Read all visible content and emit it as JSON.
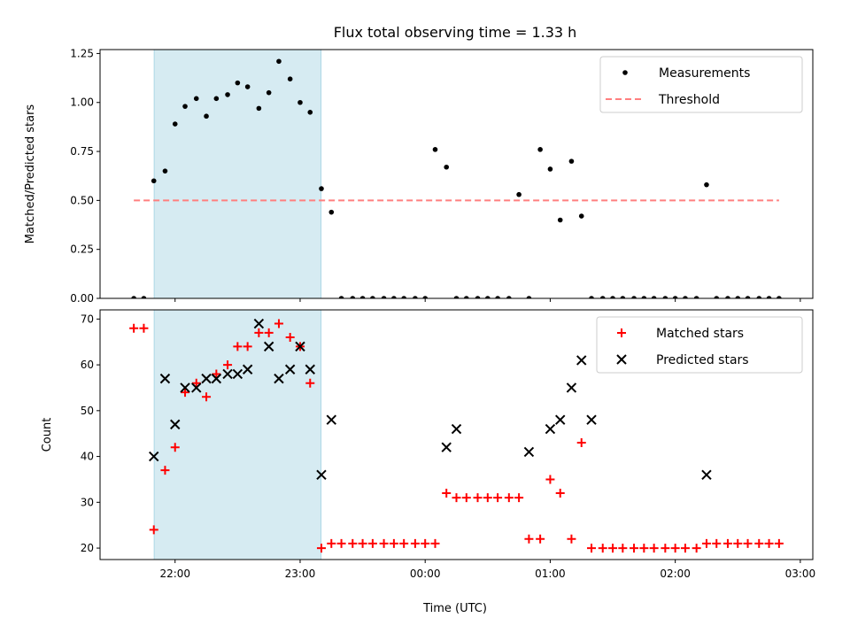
{
  "chart_data": {
    "title": "Flux total observing time = 1.33 h",
    "xlabel": "Time (UTC)",
    "x_ticks": [
      "22:00",
      "23:00",
      "00:00",
      "01:00",
      "02:00",
      "03:00"
    ],
    "x_tick_hours": [
      22,
      23,
      24,
      25,
      26,
      27
    ],
    "xlim_hours": [
      21.4,
      27.1
    ],
    "shaded_span_hours": [
      21.833,
      23.167
    ],
    "shade_color": "#add8e6",
    "panels": [
      {
        "type": "scatter",
        "ylabel": "Matched/Predicted stars",
        "ylim": [
          0,
          1.27
        ],
        "y_ticks": [
          "0.00",
          "0.25",
          "0.50",
          "0.75",
          "1.00",
          "1.25"
        ],
        "y_tick_values": [
          0,
          0.25,
          0.5,
          0.75,
          1.0,
          1.25
        ],
        "legend": {
          "position": "upper right"
        },
        "series": [
          {
            "name": "Measurements",
            "marker": "dot",
            "color": "#000000",
            "x_hours": [
              21.75,
              21.83,
              21.92,
              22.0,
              22.08,
              22.17,
              22.25,
              22.33,
              22.42,
              22.5,
              22.58,
              22.67,
              22.75,
              22.83,
              22.92,
              23.0,
              23.08,
              23.17,
              23.25,
              21.67,
              23.33,
              23.42,
              23.5,
              23.58,
              23.67,
              23.75,
              23.83,
              23.92,
              24.0,
              24.08,
              24.17,
              24.25,
              24.33,
              24.42,
              24.5,
              24.58,
              24.67,
              24.75,
              24.83,
              24.92,
              25.0,
              25.08,
              25.17,
              25.25,
              25.33,
              25.42,
              25.5,
              25.58,
              25.67,
              25.75,
              25.83,
              25.92,
              26.0,
              26.08,
              26.17,
              26.25,
              26.33,
              26.42,
              26.5,
              26.58,
              26.67,
              26.75,
              26.83
            ],
            "y": [
              0,
              0.6,
              0.65,
              0.89,
              0.98,
              1.02,
              0.93,
              1.02,
              1.04,
              1.1,
              1.08,
              0.97,
              1.05,
              1.21,
              1.12,
              1.0,
              0.95,
              0.56,
              0.44,
              0,
              0,
              0,
              0,
              0,
              0,
              0,
              0,
              0,
              0,
              0.76,
              0.67,
              0,
              0,
              0,
              0,
              0,
              0,
              0.53,
              0,
              0.76,
              0.66,
              0.4,
              0.7,
              0.42,
              0,
              0,
              0,
              0,
              0,
              0,
              0,
              0,
              0,
              0,
              0,
              0.58,
              0,
              0,
              0,
              0,
              0,
              0,
              0
            ]
          },
          {
            "name": "Threshold",
            "marker": "dashed-line",
            "color": "#ff7f7f",
            "x_hours": [
              21.67,
              26.83
            ],
            "y": [
              0.5,
              0.5
            ]
          }
        ]
      },
      {
        "type": "scatter",
        "ylabel": "Count",
        "ylim": [
          17.5,
          72
        ],
        "y_ticks": [
          "20",
          "30",
          "40",
          "50",
          "60",
          "70"
        ],
        "y_tick_values": [
          20,
          30,
          40,
          50,
          60,
          70
        ],
        "legend": {
          "position": "upper right"
        },
        "series": [
          {
            "name": "Matched stars",
            "marker": "plus",
            "color": "#ff0000",
            "x_hours": [
              21.67,
              21.75,
              21.83,
              21.92,
              22.0,
              22.08,
              22.17,
              22.25,
              22.33,
              22.42,
              22.5,
              22.58,
              22.67,
              22.75,
              22.83,
              22.92,
              23.0,
              23.08,
              23.17,
              23.25,
              23.33,
              23.42,
              23.5,
              23.58,
              23.67,
              23.75,
              23.83,
              23.92,
              24.0,
              24.08,
              24.17,
              24.25,
              24.33,
              24.42,
              24.5,
              24.58,
              24.67,
              24.75,
              24.83,
              24.92,
              25.0,
              25.08,
              25.17,
              25.25,
              25.33,
              25.42,
              25.5,
              25.58,
              25.67,
              25.75,
              25.83,
              25.92,
              26.0,
              26.08,
              26.17,
              26.25,
              26.33,
              26.42,
              26.5,
              26.58,
              26.67,
              26.75,
              26.83
            ],
            "y": [
              68,
              68,
              24,
              37,
              42,
              54,
              56,
              53,
              58,
              60,
              64,
              64,
              67,
              67,
              69,
              66,
              64,
              56,
              20,
              21,
              21,
              21,
              21,
              21,
              21,
              21,
              21,
              21,
              21,
              21,
              32,
              31,
              31,
              31,
              31,
              31,
              31,
              31,
              22,
              22,
              35,
              32,
              22,
              43,
              20,
              20,
              20,
              20,
              20,
              20,
              20,
              20,
              20,
              20,
              20,
              21,
              21,
              21,
              21,
              21,
              21,
              21,
              21
            ]
          },
          {
            "name": "Predicted stars",
            "marker": "x",
            "color": "#000000",
            "x_hours": [
              21.83,
              21.92,
              22.0,
              22.08,
              22.17,
              22.25,
              22.33,
              22.42,
              22.5,
              22.58,
              22.67,
              22.75,
              22.83,
              22.92,
              23.0,
              23.08,
              23.17,
              23.25,
              24.17,
              24.25,
              24.83,
              25.0,
              25.08,
              25.17,
              25.25,
              25.33,
              26.25
            ],
            "y": [
              40,
              57,
              47,
              55,
              55,
              57,
              57,
              58,
              58,
              59,
              69,
              64,
              57,
              59,
              64,
              59,
              36,
              48,
              42,
              46,
              41,
              46,
              48,
              55,
              61,
              48,
              36
            ]
          }
        ]
      }
    ]
  }
}
